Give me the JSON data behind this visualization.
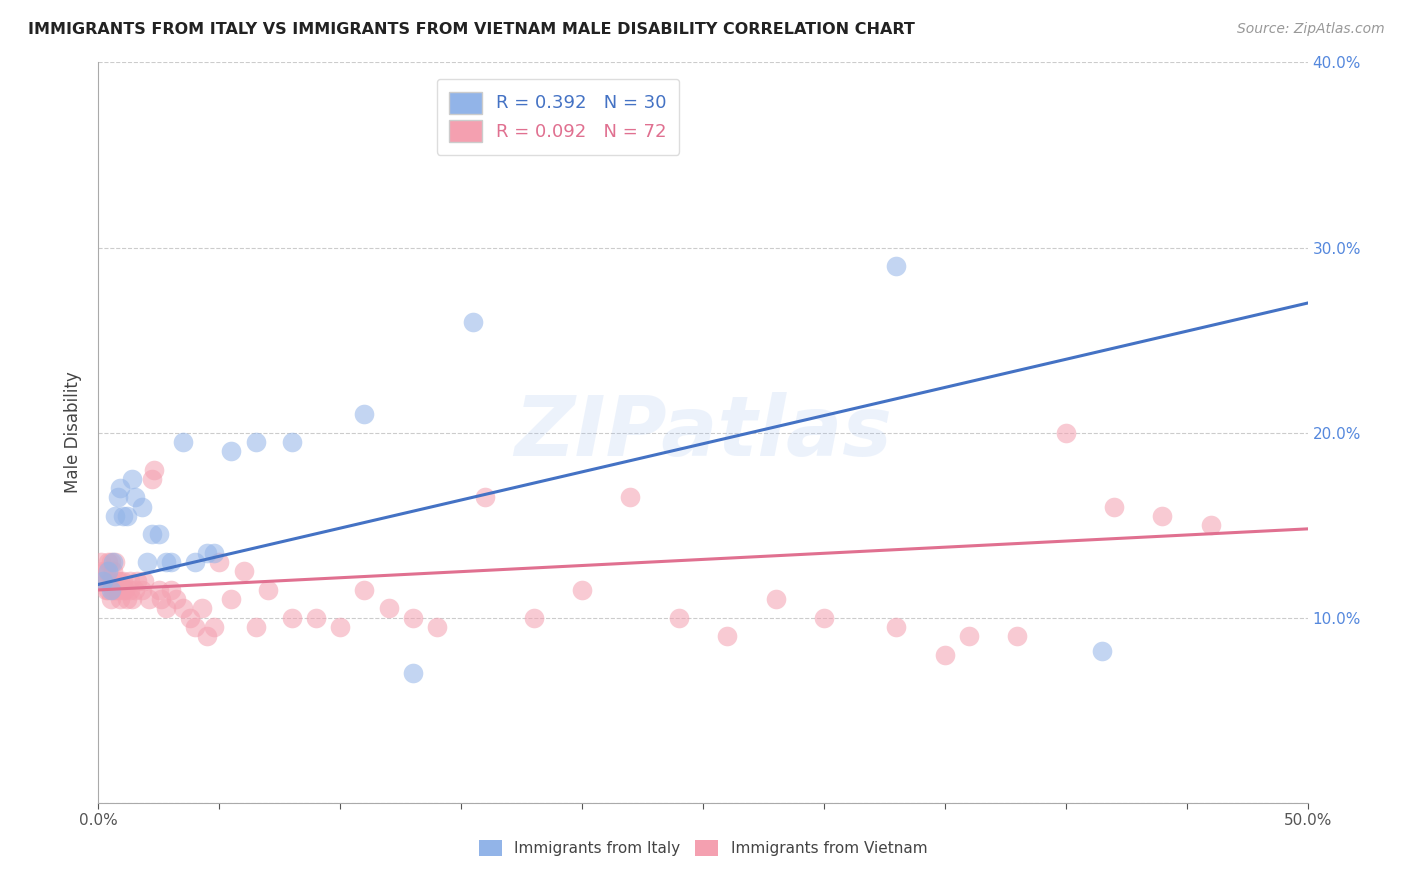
{
  "title": "IMMIGRANTS FROM ITALY VS IMMIGRANTS FROM VIETNAM MALE DISABILITY CORRELATION CHART",
  "source": "Source: ZipAtlas.com",
  "ylabel": "Male Disability",
  "xlim": [
    0,
    0.5
  ],
  "ylim": [
    0,
    0.4
  ],
  "xticks": [
    0.0,
    0.05,
    0.1,
    0.15,
    0.2,
    0.25,
    0.3,
    0.35,
    0.4,
    0.45,
    0.5
  ],
  "yticks": [
    0.0,
    0.1,
    0.2,
    0.3,
    0.4
  ],
  "x_edge_labels": [
    "0.0%",
    "50.0%"
  ],
  "ytick_labels_right": [
    "",
    "10.0%",
    "20.0%",
    "30.0%",
    "40.0%"
  ],
  "italy_R": 0.392,
  "italy_N": 30,
  "vietnam_R": 0.092,
  "vietnam_N": 72,
  "italy_color": "#92B4E8",
  "vietnam_color": "#F4A0B0",
  "italy_line_color": "#4472C4",
  "vietnam_line_color": "#E07090",
  "watermark": "ZIPatlas",
  "italy_x": [
    0.002,
    0.004,
    0.005,
    0.006,
    0.007,
    0.008,
    0.009,
    0.01,
    0.012,
    0.014,
    0.015,
    0.018,
    0.02,
    0.022,
    0.025,
    0.028,
    0.03,
    0.035,
    0.04,
    0.045,
    0.048,
    0.055,
    0.065,
    0.08,
    0.11,
    0.13,
    0.155,
    0.21,
    0.33,
    0.415
  ],
  "italy_y": [
    0.12,
    0.125,
    0.115,
    0.13,
    0.155,
    0.165,
    0.17,
    0.155,
    0.155,
    0.175,
    0.165,
    0.16,
    0.13,
    0.145,
    0.145,
    0.13,
    0.13,
    0.195,
    0.13,
    0.135,
    0.135,
    0.19,
    0.195,
    0.195,
    0.21,
    0.07,
    0.26,
    0.365,
    0.29,
    0.082
  ],
  "vietnam_x": [
    0.001,
    0.002,
    0.002,
    0.003,
    0.003,
    0.004,
    0.004,
    0.004,
    0.005,
    0.005,
    0.005,
    0.006,
    0.006,
    0.007,
    0.007,
    0.008,
    0.008,
    0.009,
    0.009,
    0.01,
    0.01,
    0.011,
    0.012,
    0.013,
    0.013,
    0.014,
    0.015,
    0.016,
    0.018,
    0.019,
    0.021,
    0.022,
    0.023,
    0.025,
    0.026,
    0.028,
    0.03,
    0.032,
    0.035,
    0.038,
    0.04,
    0.043,
    0.045,
    0.048,
    0.05,
    0.055,
    0.06,
    0.065,
    0.07,
    0.08,
    0.09,
    0.1,
    0.11,
    0.12,
    0.13,
    0.14,
    0.16,
    0.18,
    0.2,
    0.22,
    0.24,
    0.26,
    0.28,
    0.3,
    0.33,
    0.35,
    0.36,
    0.38,
    0.4,
    0.42,
    0.44,
    0.46
  ],
  "vietnam_y": [
    0.13,
    0.125,
    0.12,
    0.115,
    0.125,
    0.13,
    0.12,
    0.115,
    0.12,
    0.13,
    0.11,
    0.125,
    0.115,
    0.13,
    0.115,
    0.12,
    0.115,
    0.12,
    0.11,
    0.115,
    0.12,
    0.115,
    0.11,
    0.12,
    0.115,
    0.11,
    0.115,
    0.12,
    0.115,
    0.12,
    0.11,
    0.175,
    0.18,
    0.115,
    0.11,
    0.105,
    0.115,
    0.11,
    0.105,
    0.1,
    0.095,
    0.105,
    0.09,
    0.095,
    0.13,
    0.11,
    0.125,
    0.095,
    0.115,
    0.1,
    0.1,
    0.095,
    0.115,
    0.105,
    0.1,
    0.095,
    0.165,
    0.1,
    0.115,
    0.165,
    0.1,
    0.09,
    0.11,
    0.1,
    0.095,
    0.08,
    0.09,
    0.09,
    0.2,
    0.16,
    0.155,
    0.15
  ],
  "italy_line_x0": 0.0,
  "italy_line_y0": 0.118,
  "italy_line_x1": 0.5,
  "italy_line_y1": 0.27,
  "vietnam_line_x0": 0.0,
  "vietnam_line_y0": 0.115,
  "vietnam_line_x1": 0.5,
  "vietnam_line_y1": 0.148
}
